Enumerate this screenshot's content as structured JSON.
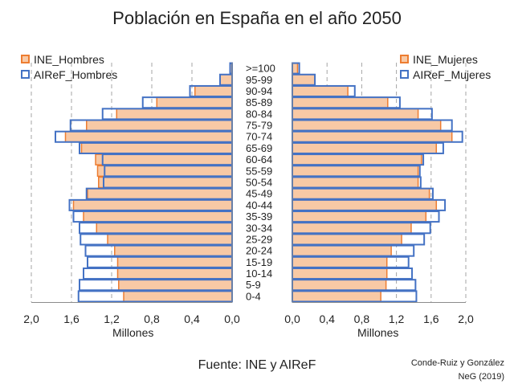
{
  "title": "Población en España en el año 2050",
  "source": "Fuente: INE y AIReF",
  "credit": [
    "Conde-Ruiz y González",
    "NeG (2019)"
  ],
  "colors": {
    "ine_fill": "#f8c9a5",
    "ine_stroke": "#ed7d31",
    "airef_stroke": "#4472c4",
    "grid": "#a6a6a6"
  },
  "chart_data": {
    "type": "bar",
    "orientation": "horizontal",
    "subtype": "population pyramid",
    "categories": [
      "0-4",
      "5-9",
      "10-14",
      "15-19",
      "20-24",
      "25-29",
      "30-34",
      "35-39",
      "40-44",
      "45-49",
      "50-54",
      "55-59",
      "60-64",
      "65-69",
      "70-74",
      "75-79",
      "80-84",
      "85-89",
      "90-94",
      "95-99",
      ">=100"
    ],
    "panels": [
      {
        "side": "left",
        "xlabel": "Millones",
        "xlim": [
          2.0,
          0.0
        ],
        "ticks": [
          "2,0",
          "1,6",
          "1,2",
          "0,8",
          "0,4",
          "0,0"
        ],
        "legend_position": "top-left",
        "series": [
          {
            "name": "INE_Hombres",
            "values": [
              1.08,
              1.13,
              1.14,
              1.14,
              1.17,
              1.24,
              1.35,
              1.48,
              1.58,
              1.44,
              1.33,
              1.34,
              1.36,
              1.5,
              1.66,
              1.45,
              1.15,
              0.75,
              0.37,
              0.12,
              0.02
            ]
          },
          {
            "name": "AIReF_Hombres",
            "values": [
              1.53,
              1.52,
              1.48,
              1.44,
              1.46,
              1.51,
              1.52,
              1.58,
              1.62,
              1.45,
              1.28,
              1.27,
              1.29,
              1.52,
              1.76,
              1.61,
              1.29,
              0.89,
              0.42,
              0.12,
              0.02
            ]
          }
        ]
      },
      {
        "side": "right",
        "xlabel": "Millones",
        "xlim": [
          0.0,
          2.0
        ],
        "ticks": [
          "0,0",
          "0,4",
          "0,8",
          "1,2",
          "1,6",
          "2,0"
        ],
        "legend_position": "top-right",
        "series": [
          {
            "name": "INE_Mujeres",
            "values": [
              1.02,
              1.08,
              1.09,
              1.09,
              1.14,
              1.26,
              1.37,
              1.54,
              1.66,
              1.58,
              1.45,
              1.45,
              1.49,
              1.66,
              1.84,
              1.71,
              1.45,
              1.1,
              0.64,
              0.26,
              0.06
            ]
          },
          {
            "name": "AIReF_Mujeres",
            "values": [
              1.43,
              1.42,
              1.38,
              1.34,
              1.4,
              1.52,
              1.59,
              1.69,
              1.76,
              1.62,
              1.48,
              1.47,
              1.51,
              1.74,
              1.96,
              1.84,
              1.61,
              1.24,
              0.72,
              0.26,
              0.08
            ]
          }
        ]
      }
    ]
  }
}
